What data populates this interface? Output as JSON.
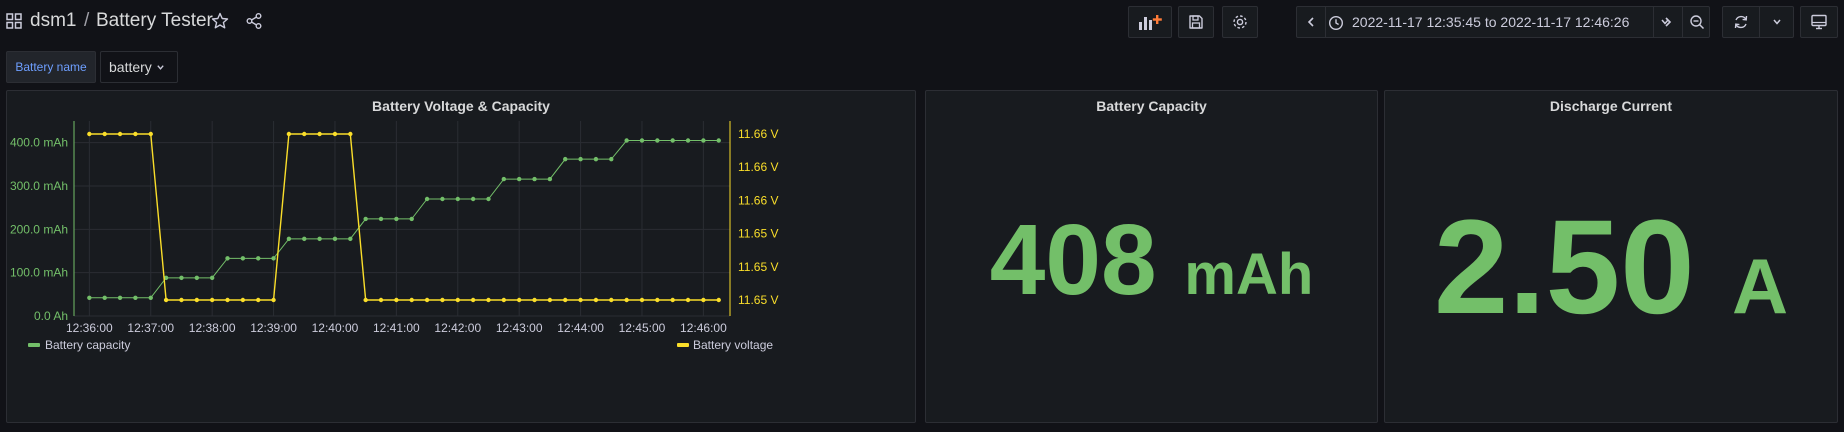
{
  "header": {
    "app_name": "dsm1",
    "separator": "/",
    "title": "Battery Tester"
  },
  "time_range": "2022-11-17 12:35:45 to 2022-11-17 12:46:26",
  "variable": {
    "label": "Battery name",
    "value": "battery"
  },
  "colors": {
    "green": "#73bf69",
    "yellow": "#fade2a"
  },
  "icons": [
    "grid-icon",
    "star-icon",
    "share-icon",
    "add-panel-icon",
    "save-icon",
    "gear-icon",
    "chevron-left-icon",
    "clock-icon",
    "chevron-down-icon",
    "chevron-right-icon",
    "zoom-out-icon",
    "refresh-icon",
    "tv-icon"
  ],
  "panels": {
    "chart": {
      "title": "Battery Voltage & Capacity"
    },
    "capacity": {
      "title": "Battery Capacity",
      "value": "408",
      "unit": "mAh"
    },
    "current": {
      "title": "Discharge Current",
      "value": "2.50",
      "unit": "A"
    }
  },
  "chart_data": {
    "type": "line",
    "title": "Battery Voltage & Capacity",
    "x_ticks": [
      "12:36:00",
      "12:37:00",
      "12:38:00",
      "12:39:00",
      "12:40:00",
      "12:41:00",
      "12:42:00",
      "12:43:00",
      "12:44:00",
      "12:45:00",
      "12:46:00"
    ],
    "x_range": [
      "12:35:45",
      "12:46:26"
    ],
    "y_left_ticks": [
      "0.0 Ah",
      "100.0 mAh",
      "200.0 mAh",
      "300.0 mAh",
      "400.0 mAh"
    ],
    "y_left_range": [
      0,
      450
    ],
    "y_right_ticks": [
      "11.65 V",
      "11.65 V",
      "11.65 V",
      "11.66 V",
      "11.66 V",
      "11.66 V"
    ],
    "legend": [
      "Battery capacity",
      "Battery voltage"
    ],
    "legend_placement": "bottom",
    "grid": true,
    "series": [
      {
        "name": "Battery capacity",
        "axis": "left",
        "color": "#73bf69",
        "x": [
          "12:36:00",
          "12:36:15",
          "12:36:30",
          "12:36:45",
          "12:37:00",
          "12:37:15",
          "12:37:30",
          "12:37:45",
          "12:38:00",
          "12:38:15",
          "12:38:30",
          "12:38:45",
          "12:39:00",
          "12:39:15",
          "12:39:30",
          "12:39:45",
          "12:40:00",
          "12:40:15",
          "12:40:30",
          "12:40:45",
          "12:41:00",
          "12:41:15",
          "12:41:30",
          "12:41:45",
          "12:42:00",
          "12:42:15",
          "12:42:30",
          "12:42:45",
          "12:43:00",
          "12:43:15",
          "12:43:30",
          "12:43:45",
          "12:44:00",
          "12:44:15",
          "12:44:30",
          "12:44:45",
          "12:45:00",
          "12:45:15",
          "12:45:30",
          "12:45:45",
          "12:46:00",
          "12:46:15"
        ],
        "values": [
          42,
          42,
          42,
          42,
          42,
          88,
          88,
          88,
          88,
          133,
          133,
          133,
          133,
          178,
          178,
          178,
          178,
          178,
          224,
          224,
          224,
          224,
          270,
          270,
          270,
          270,
          270,
          316,
          316,
          316,
          316,
          362,
          362,
          362,
          362,
          405,
          405,
          405,
          405,
          405,
          405,
          405
        ]
      },
      {
        "name": "Battery voltage",
        "axis": "right",
        "color": "#fade2a",
        "x": [
          "12:36:00",
          "12:36:15",
          "12:36:30",
          "12:36:45",
          "12:37:00",
          "12:37:15",
          "12:37:30",
          "12:37:45",
          "12:38:00",
          "12:38:15",
          "12:38:30",
          "12:38:45",
          "12:39:00",
          "12:39:15",
          "12:39:30",
          "12:39:45",
          "12:40:00",
          "12:40:15",
          "12:40:30",
          "12:40:45",
          "12:41:00",
          "12:41:15",
          "12:41:30",
          "12:41:45",
          "12:42:00",
          "12:42:15",
          "12:42:30",
          "12:42:45",
          "12:43:00",
          "12:43:15",
          "12:43:30",
          "12:43:45",
          "12:44:00",
          "12:44:15",
          "12:44:30",
          "12:44:45",
          "12:45:00",
          "12:45:15",
          "12:45:30",
          "12:45:45",
          "12:46:00",
          "12:46:15"
        ],
        "levels": [
          "high",
          "high",
          "high",
          "high",
          "high",
          "low",
          "low",
          "low",
          "low",
          "low",
          "low",
          "low",
          "low",
          "high",
          "high",
          "high",
          "high",
          "high",
          "low",
          "low",
          "low",
          "low",
          "low",
          "low",
          "low",
          "low",
          "low",
          "low",
          "low",
          "low",
          "low",
          "low",
          "low",
          "low",
          "low",
          "low",
          "low",
          "low",
          "low",
          "low",
          "low",
          "low"
        ]
      }
    ]
  }
}
